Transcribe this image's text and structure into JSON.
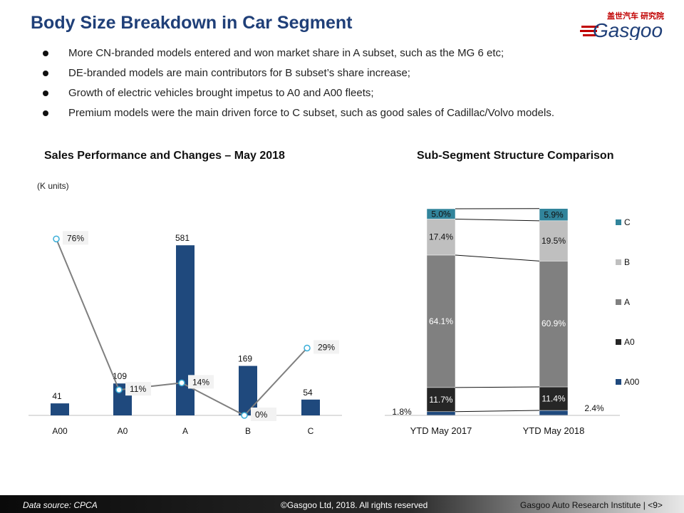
{
  "page": {
    "title": "Body Size Breakdown in Car Segment",
    "logo_cn": "盖世汽车 研究院",
    "logo_en": "Gasgoo",
    "bullets": [
      "More CN-branded models entered and won market share in A subset, such as the MG 6 etc;",
      "DE-branded models are main contributors for B subset’s share increase;",
      "Growth of electric vehicles brought impetus to A0 and A00 fleets;",
      "Premium models were the main driven force to C subset, such as good sales of Cadillac/Volvo models."
    ],
    "footer": {
      "source": "Data source: CPCA",
      "copyright": "©Gasgoo Ltd, 2018.  All rights reserved",
      "institute": "Gasgoo Auto Research Institute  |  <9>"
    },
    "colors": {
      "title": "#1f3f78",
      "bar": "#1f497d",
      "line": "#7f7f7f",
      "marker": "#3aaed8"
    }
  },
  "chart_data": [
    {
      "type": "bar",
      "title": "Sales Performance and Changes – May 2018",
      "unit_label": "(K units)",
      "categories": [
        "A00",
        "A0",
        "A",
        "B",
        "C"
      ],
      "values": [
        41,
        109,
        581,
        169,
        54
      ],
      "value_labels": [
        "41",
        "109",
        "581",
        "169",
        "54"
      ],
      "ylim": [
        0,
        640
      ],
      "change_line": {
        "values": [
          76,
          11,
          14,
          0,
          29
        ],
        "labels": [
          "76%",
          "11%",
          "14%",
          "0%",
          "29%"
        ],
        "ylim": [
          0,
          85
        ]
      },
      "legend": "none"
    },
    {
      "type": "bar",
      "stacked": true,
      "title": "Sub-Segment Structure Comparison",
      "categories": [
        "YTD May 2017",
        "YTD May 2018"
      ],
      "series": [
        {
          "name": "A00",
          "values": [
            1.8,
            2.4
          ],
          "labels": [
            "1.8%",
            "2.4%"
          ],
          "color": "#1f497d"
        },
        {
          "name": "A0",
          "values": [
            11.7,
            11.4
          ],
          "labels": [
            "11.7%",
            "11.4%"
          ],
          "color": "#262626"
        },
        {
          "name": "A",
          "values": [
            64.1,
            60.9
          ],
          "labels": [
            "64.1%",
            "60.9%"
          ],
          "color": "#808080"
        },
        {
          "name": "B",
          "values": [
            17.4,
            19.5
          ],
          "labels": [
            "17.4%",
            "19.5%"
          ],
          "color": "#bfbfbf"
        },
        {
          "name": "C",
          "values": [
            5.0,
            5.9
          ],
          "labels": [
            "5.0%",
            "5.9%"
          ],
          "color": "#31849b"
        }
      ],
      "ylim": [
        0,
        100
      ],
      "legend": "right"
    }
  ]
}
